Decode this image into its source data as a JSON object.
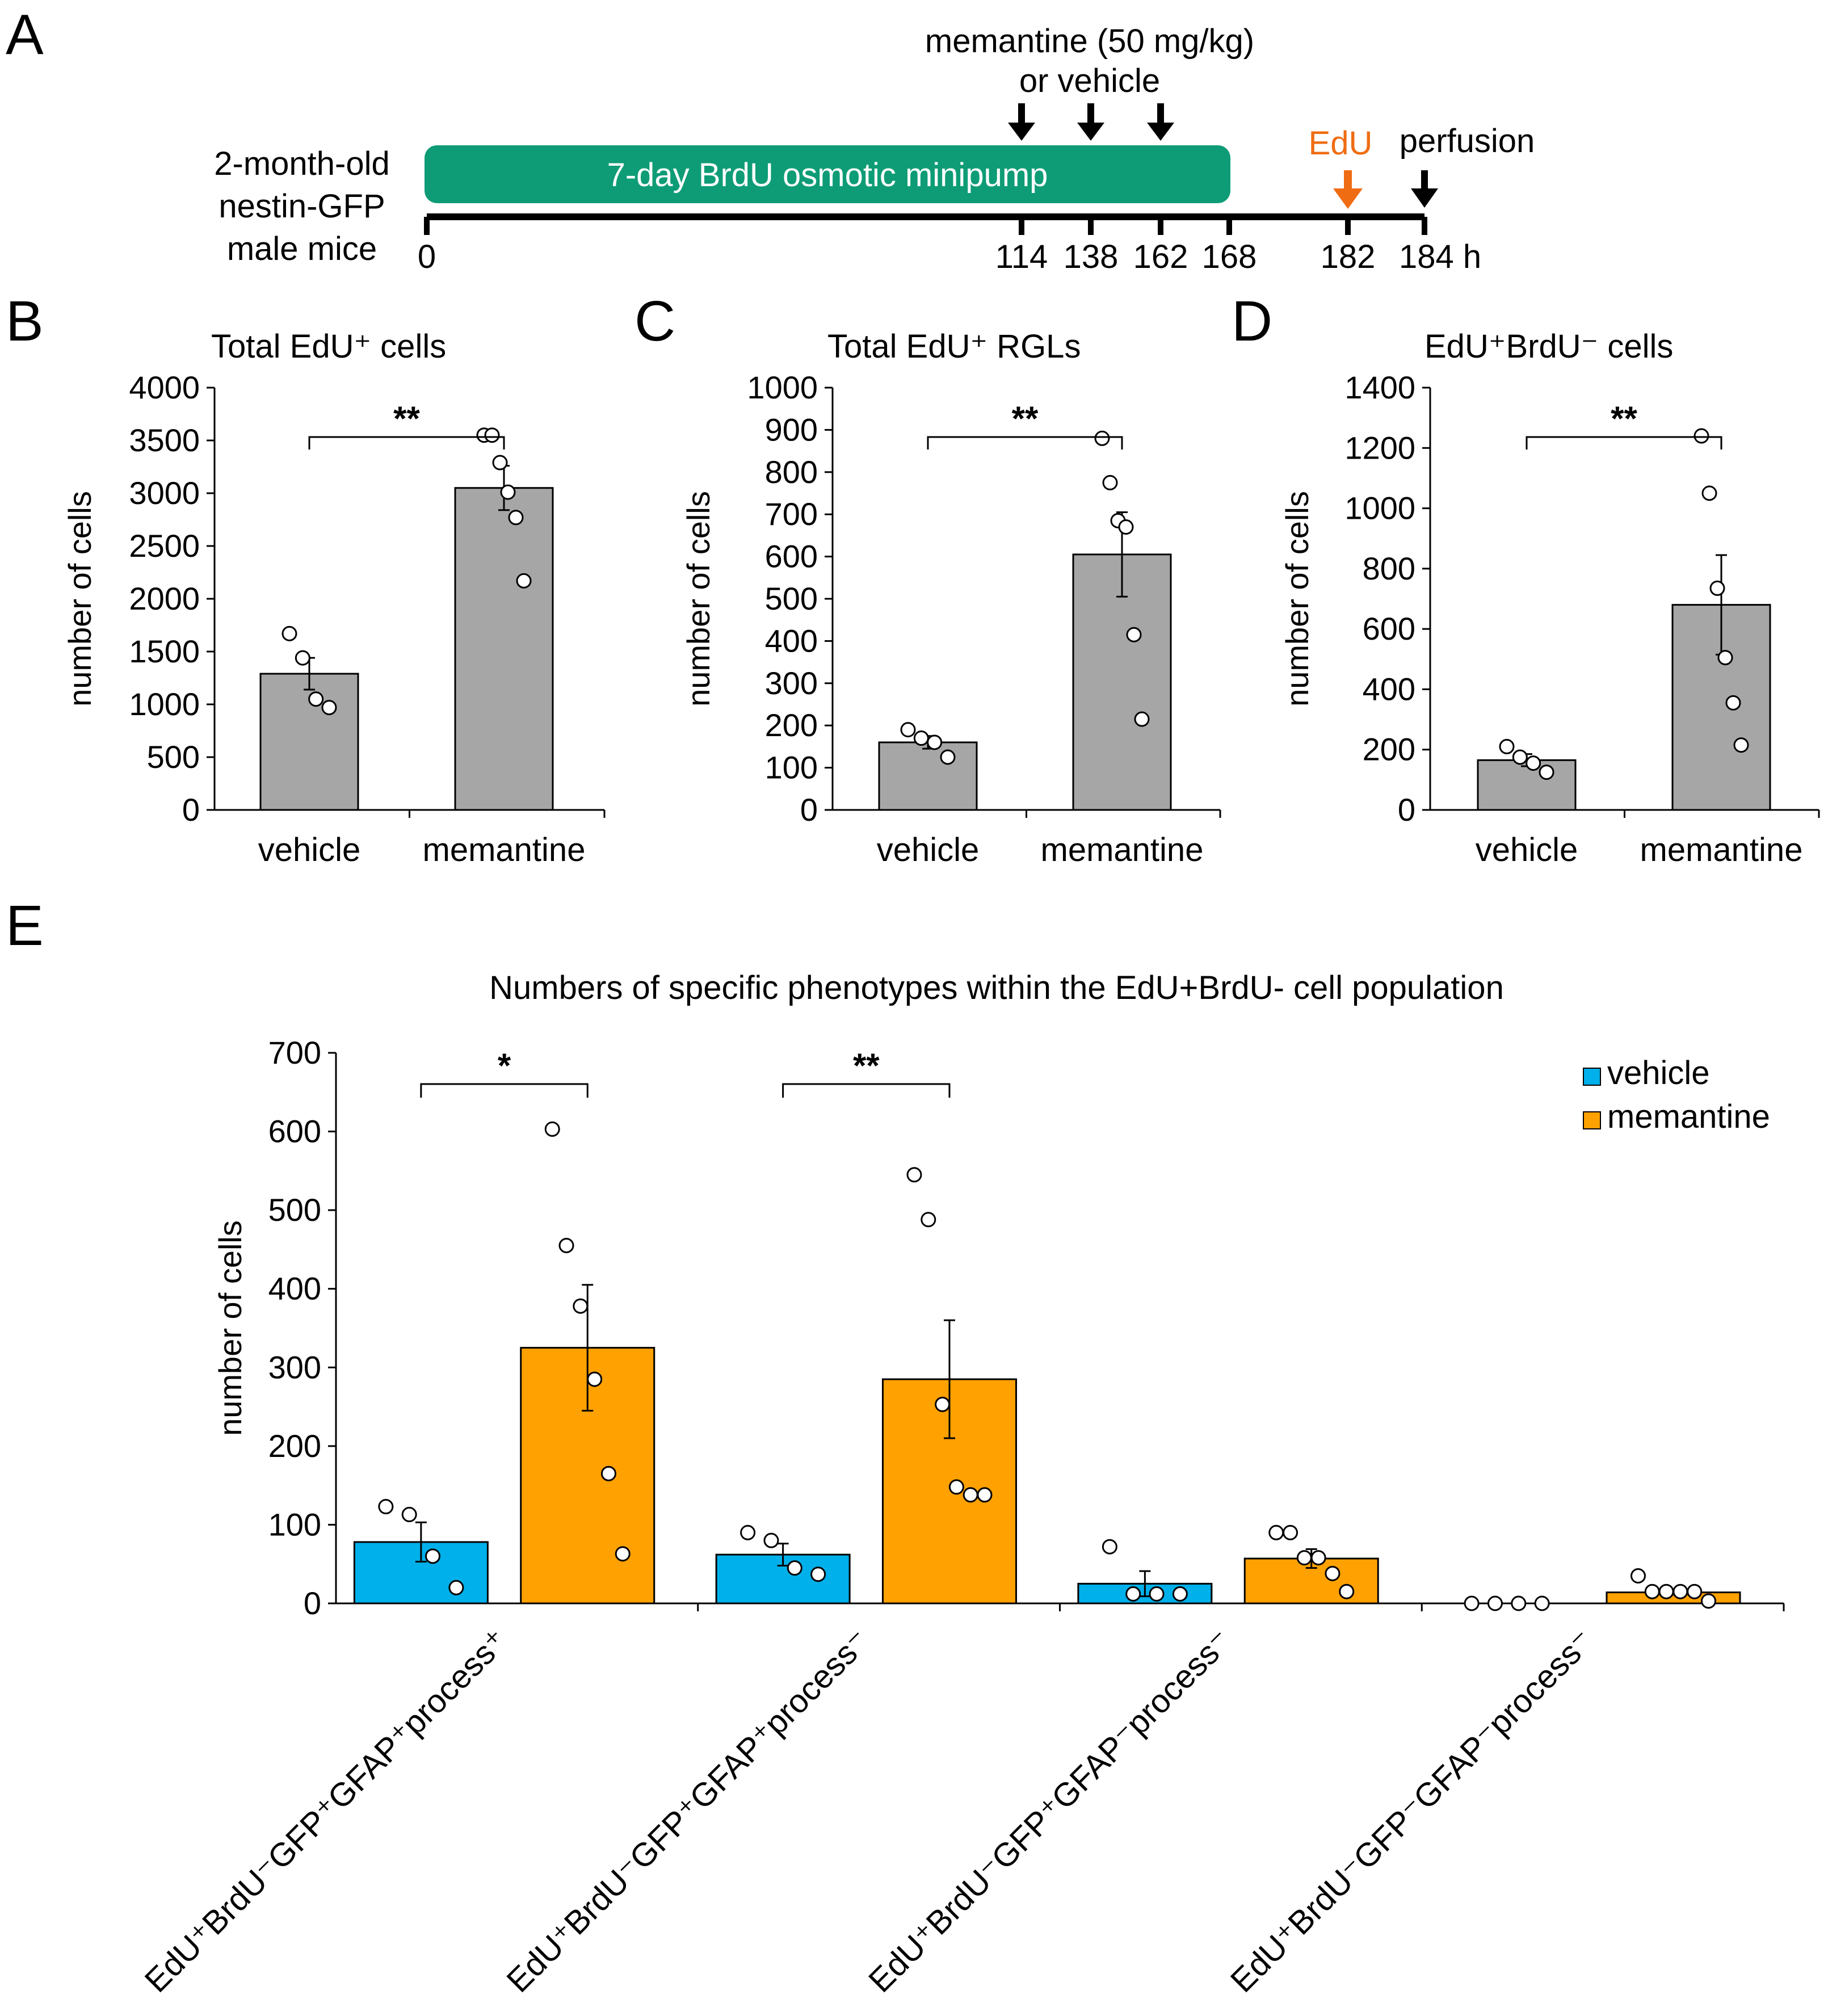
{
  "panel_a": {
    "letter": "A",
    "subject_lines": [
      "2-month-old",
      "nestin-GFP",
      "male mice"
    ],
    "pump_label": "7-day BrdU osmotic minipump",
    "drug_label_lines": [
      "memantine (50 mg/kg)",
      "or vehicle"
    ],
    "edu_label": "EdU",
    "perfusion_label": "perfusion",
    "ticks": [
      "0",
      "114",
      "138",
      "162",
      "168",
      "182",
      "184 h"
    ],
    "colors": {
      "pump": "#0e9c76",
      "edu": "#ef6c12"
    }
  },
  "colors": {
    "bar_gray": "#a6a6a6",
    "vehicle": "#00b0ea",
    "memantine": "#ffa100"
  },
  "chart_data": [
    {
      "panel": "B",
      "type": "bar",
      "title": "Total EdU⁺ cells",
      "ylabel": "number of cells",
      "categories": [
        "vehicle",
        "memantine"
      ],
      "values": [
        1290,
        3050
      ],
      "errors": [
        150,
        210
      ],
      "points": [
        [
          1670,
          1440,
          1050,
          970
        ],
        [
          3550,
          3550,
          3290,
          3010,
          2770,
          2170
        ]
      ],
      "ylim": [
        0,
        4000
      ],
      "yticks": [
        "0",
        "500",
        "1000",
        "1500",
        "2000",
        "2500",
        "3000",
        "3500",
        "4000"
      ],
      "significance": "**"
    },
    {
      "panel": "C",
      "type": "bar",
      "title": "Total EdU⁺ RGLs",
      "ylabel": "number of cells",
      "categories": [
        "vehicle",
        "memantine"
      ],
      "values": [
        160,
        605
      ],
      "errors": [
        15,
        100
      ],
      "points": [
        [
          190,
          170,
          160,
          125
        ],
        [
          880,
          775,
          685,
          670,
          415,
          215
        ]
      ],
      "ylim": [
        0,
        1000
      ],
      "yticks": [
        "0",
        "100",
        "200",
        "300",
        "400",
        "500",
        "600",
        "700",
        "800",
        "900",
        "1000"
      ],
      "significance": "**"
    },
    {
      "panel": "D",
      "type": "bar",
      "title": "EdU⁺BrdU⁻ cells",
      "ylabel": "number of cells",
      "categories": [
        "vehicle",
        "memantine"
      ],
      "values": [
        165,
        680
      ],
      "errors": [
        20,
        165
      ],
      "points": [
        [
          210,
          175,
          155,
          125
        ],
        [
          1240,
          1050,
          735,
          505,
          355,
          215
        ]
      ],
      "ylim": [
        0,
        1400
      ],
      "yticks": [
        "0",
        "200",
        "400",
        "600",
        "800",
        "1000",
        "1200",
        "1400"
      ],
      "significance": "**"
    },
    {
      "panel": "E",
      "type": "bar",
      "title": "Numbers of specific phenotypes within the EdU+BrdU- cell population",
      "ylabel": "number of cells",
      "categories": [
        "EdU⁺BrdU⁻GFP⁺GFAP⁺process⁺",
        "EdU⁺BrdU⁻GFP⁺GFAP⁺process⁻",
        "EdU⁺BrdU⁻GFP⁺GFAP⁻process⁻",
        "EdU⁺BrdU⁻GFP⁻GFAP⁻process⁻"
      ],
      "series": [
        {
          "name": "vehicle",
          "values": [
            78,
            62,
            25,
            0
          ],
          "errors": [
            25,
            14,
            16,
            0
          ],
          "points": [
            [
              123,
              113,
              60,
              20
            ],
            [
              90,
              80,
              45,
              37
            ],
            [
              72,
              12,
              12,
              12
            ],
            [
              0,
              0,
              0,
              0
            ]
          ]
        },
        {
          "name": "memantine",
          "values": [
            325,
            285,
            57,
            14
          ],
          "errors": [
            80,
            75,
            12,
            3
          ],
          "points": [
            [
              603,
              455,
              378,
              285,
              165,
              63
            ],
            [
              545,
              488,
              253,
              148,
              138,
              138
            ],
            [
              90,
              90,
              58,
              58,
              38,
              15
            ],
            [
              35,
              15,
              15,
              15,
              15,
              3
            ]
          ]
        }
      ],
      "ylim": [
        0,
        700
      ],
      "yticks": [
        "0",
        "100",
        "200",
        "300",
        "400",
        "500",
        "600",
        "700"
      ],
      "significance": [
        {
          "pair": 0,
          "label": "*"
        },
        {
          "pair": 1,
          "label": "**"
        }
      ],
      "legend": "top-right"
    }
  ]
}
